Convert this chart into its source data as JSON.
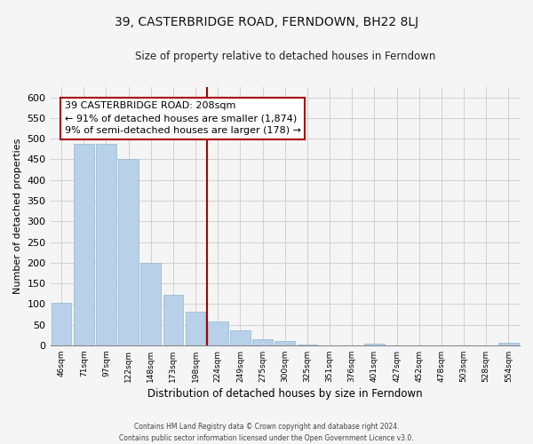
{
  "title": "39, CASTERBRIDGE ROAD, FERNDOWN, BH22 8LJ",
  "subtitle": "Size of property relative to detached houses in Ferndown",
  "xlabel": "Distribution of detached houses by size in Ferndown",
  "ylabel": "Number of detached properties",
  "footer_line1": "Contains HM Land Registry data © Crown copyright and database right 2024.",
  "footer_line2": "Contains public sector information licensed under the Open Government Licence v3.0.",
  "bar_labels": [
    "46sqm",
    "71sqm",
    "97sqm",
    "122sqm",
    "148sqm",
    "173sqm",
    "198sqm",
    "224sqm",
    "249sqm",
    "275sqm",
    "300sqm",
    "325sqm",
    "351sqm",
    "376sqm",
    "401sqm",
    "427sqm",
    "452sqm",
    "478sqm",
    "503sqm",
    "528sqm",
    "554sqm"
  ],
  "bar_values": [
    103,
    487,
    487,
    450,
    200,
    122,
    82,
    57,
    37,
    15,
    10,
    2,
    0,
    0,
    4,
    0,
    0,
    0,
    0,
    0,
    5
  ],
  "bar_color": "#b8d0e8",
  "bar_edge_color": "#9bbdd6",
  "vline_x": 6.5,
  "vline_color": "#aa0000",
  "annotation_title": "39 CASTERBRIDGE ROAD: 208sqm",
  "annotation_line1": "← 91% of detached houses are smaller (1,874)",
  "annotation_line2": "9% of semi-detached houses are larger (178) →",
  "annotation_box_color": "#ffffff",
  "annotation_box_edge_color": "#aa0000",
  "ylim": [
    0,
    625
  ],
  "yticks": [
    0,
    50,
    100,
    150,
    200,
    250,
    300,
    350,
    400,
    450,
    500,
    550,
    600
  ],
  "grid_color": "#d0d0d0",
  "background_color": "#f5f5f5",
  "fig_width": 6.0,
  "fig_height": 5.0
}
